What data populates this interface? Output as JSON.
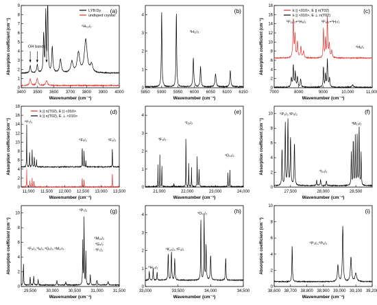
{
  "figure": {
    "alt": "Absorption spectra of LYB:Dy crystal, panels (a)–(i)"
  },
  "chart_data": [
    {
      "id": "a",
      "type": "line",
      "panel_label": "(a)",
      "xlabel": "Wavenumber (cm⁻¹)",
      "ylabel": "Absorption coefficient (cm⁻¹)",
      "xlim": [
        3400,
        4000
      ],
      "ylim": [
        0,
        9
      ],
      "xticks": [
        3400,
        3500,
        3600,
        3700,
        3800,
        3900,
        4000
      ],
      "yticks": [
        0,
        1,
        2,
        3,
        4,
        5,
        6,
        7,
        8,
        9
      ],
      "legend": {
        "position": "top-right",
        "entries": [
          "LYB:Dy",
          "undoped crystal"
        ]
      },
      "annotations": [
        {
          "text": "OH bands",
          "x": 3495,
          "y": 4.4
        },
        {
          "text": "⁶H₁₃/₂",
          "x": 3800,
          "y": 6.6
        }
      ],
      "series": [
        {
          "name": "LYB:Dy",
          "color": "#000000",
          "base": 1.6,
          "peaks": [
            [
              3455,
              0.8,
              4
            ],
            [
              3498,
              0.9,
              4
            ],
            [
              3537,
              4.2,
              3
            ],
            [
              3550,
              6.5,
              2.5
            ],
            [
              3562,
              8.7,
              2.5
            ],
            [
              3590,
              2.8,
              4
            ],
            [
              3640,
              1.5,
              6
            ],
            [
              3710,
              1.2,
              8
            ],
            [
              3750,
              2.2,
              9
            ],
            [
              3795,
              3.6,
              10
            ],
            [
              3830,
              0.9,
              8
            ]
          ]
        },
        {
          "name": "undoped crystal",
          "color": "#e0302a",
          "base": 0.25,
          "peaks": [
            [
              3455,
              0.7,
              5
            ],
            [
              3498,
              0.8,
              5
            ],
            [
              3555,
              0.5,
              6
            ]
          ]
        }
      ]
    },
    {
      "id": "b",
      "type": "line",
      "panel_label": "(b)",
      "xlabel": "Wavenumber (cm⁻¹)",
      "ylabel": "",
      "xlim": [
        5850,
        6150
      ],
      "ylim": [
        0,
        4.5
      ],
      "xticks": [
        5850,
        5900,
        5950,
        6000,
        6050,
        6100,
        6150
      ],
      "yticks": [
        0,
        1,
        2,
        3,
        4
      ],
      "annotations": [
        {
          "text": "⁶H₁₁/₂",
          "x": 6000,
          "y": 3.0
        }
      ],
      "series": [
        {
          "name": "",
          "color": "#000000",
          "base": 0.05,
          "peaks": [
            [
              5900,
              4.2,
              1.2
            ],
            [
              5945,
              4.1,
              1.2
            ],
            [
              5997,
              1.6,
              1.5
            ],
            [
              6019,
              1.1,
              1.5
            ],
            [
              6065,
              0.7,
              2
            ],
            [
              6110,
              0.9,
              1.6
            ]
          ]
        }
      ]
    },
    {
      "id": "c",
      "type": "line",
      "panel_label": "(c)",
      "xlabel": "Wavenumber (cm⁻¹)",
      "ylabel": "Absorption coefficient (cm⁻¹)",
      "xlim": [
        7000,
        11000
      ],
      "ylim": [
        0,
        18
      ],
      "xticks": [
        7000,
        8000,
        9000,
        10000,
        11000
      ],
      "yticks": [
        0,
        2,
        4,
        6,
        8,
        10,
        12,
        14,
        16,
        18
      ],
      "legend": {
        "position": "top",
        "entries": [
          "k || <010>, E || n(T02)",
          "k || <010>, E ⊥ n(T02)"
        ]
      },
      "annotations": [
        {
          "text": "⁶F₁₁/₂+⁶H₉/₂",
          "x": 7900,
          "y": 14.2
        },
        {
          "text": "⁶F₉/₂+⁶H₇/₂",
          "x": 9300,
          "y": 14.2
        },
        {
          "text": "⁶H₅/₂",
          "x": 10500,
          "y": 8.6
        }
      ],
      "series": [
        {
          "name": "k || <010>, E || n(T02)",
          "color": "#e0302a",
          "base": 6.5,
          "peaks": [
            [
              7780,
              8.5,
              20
            ],
            [
              7850,
              5.0,
              18
            ],
            [
              7950,
              3.5,
              20
            ],
            [
              8090,
              2.5,
              20
            ],
            [
              8200,
              1.5,
              25
            ],
            [
              9010,
              6.5,
              15
            ],
            [
              9090,
              4.0,
              15
            ],
            [
              9170,
              8.8,
              18
            ],
            [
              9250,
              3.0,
              20
            ],
            [
              9350,
              1.5,
              25
            ]
          ]
        },
        {
          "name": "k || <010>, E ⊥ n(T02)",
          "color": "#000000",
          "base": 0.1,
          "peaks": [
            [
              7700,
              2.0,
              20
            ],
            [
              7780,
              4.8,
              18
            ],
            [
              7860,
              3.2,
              18
            ],
            [
              7950,
              2.2,
              20
            ],
            [
              8080,
              1.8,
              20
            ],
            [
              9010,
              4.5,
              15
            ],
            [
              9090,
              2.8,
              15
            ],
            [
              9170,
              6.0,
              18
            ],
            [
              9260,
              2.0,
              20
            ],
            [
              10200,
              0.5,
              40
            ]
          ]
        }
      ]
    },
    {
      "id": "d",
      "type": "line",
      "panel_label": "(d)",
      "xlabel": "Wavenumber (cm⁻¹)",
      "ylabel": "Absorption coefficient (cm⁻¹)",
      "xlim": [
        10800,
        13500
      ],
      "ylim": [
        0,
        18
      ],
      "xticks": [
        11000,
        11500,
        12000,
        12500,
        13000,
        13500
      ],
      "yticks": [
        0,
        2,
        4,
        6,
        8,
        10,
        12,
        14,
        16,
        18
      ],
      "legend": {
        "position": "top",
        "entries": [
          "k || n(T02), E || <010>",
          "k || n(T02), E ⊥ <010>"
        ]
      },
      "annotations": [
        {
          "text": "⁶F₇/₂",
          "x": 11000,
          "y": 14.3
        },
        {
          "text": "⁶F₅/₂",
          "x": 12500,
          "y": 10.2
        },
        {
          "text": "⁶F₃/₂",
          "x": 13300,
          "y": 10.2
        }
      ],
      "series": [
        {
          "name": "k || n(T02), E || <010>",
          "color": "#e0302a",
          "base": 0.05,
          "peaks": [
            [
              10950,
              4.0,
              4
            ],
            [
              11040,
              1.5,
              5
            ],
            [
              11100,
              2.0,
              5
            ],
            [
              11150,
              1.5,
              5
            ],
            [
              12480,
              2.5,
              4
            ],
            [
              12530,
              1.8,
              4
            ],
            [
              13310,
              3.8,
              4
            ]
          ]
        },
        {
          "name": "k || n(T02), E ⊥ <010>",
          "color": "#000000",
          "base": 4.5,
          "peaks": [
            [
              10950,
              9.5,
              4
            ],
            [
              11030,
              3.5,
              5
            ],
            [
              11100,
              4.0,
              5
            ],
            [
              11160,
              2.5,
              5
            ],
            [
              11220,
              1.5,
              5
            ],
            [
              12480,
              5.5,
              4
            ],
            [
              12530,
              3.8,
              4
            ],
            [
              12580,
              1.5,
              4
            ],
            [
              13310,
              5.0,
              4
            ]
          ]
        }
      ]
    },
    {
      "id": "e",
      "type": "line",
      "panel_label": "(e)",
      "xlabel": "Wavenumber (cm⁻¹)",
      "ylabel": "",
      "xlim": [
        20500,
        24000
      ],
      "ylim": [
        0,
        4.5
      ],
      "xticks": [
        21000,
        22000,
        23000,
        24000
      ],
      "yticks": [
        0,
        1,
        2,
        3,
        4
      ],
      "annotations": [
        {
          "text": "⁴F₉/₂",
          "x": 21100,
          "y": 2.6
        },
        {
          "text": "⁴I₁₅/₂",
          "x": 22050,
          "y": 3.5
        },
        {
          "text": "⁴G₁₁/₂",
          "x": 23500,
          "y": 1.7
        }
      ],
      "series": [
        {
          "name": "",
          "color": "#000000",
          "base": 0.03,
          "peaks": [
            [
              20950,
              1.3,
              4
            ],
            [
              21020,
              2.1,
              4
            ],
            [
              21090,
              1.5,
              4
            ],
            [
              21520,
              0.2,
              6
            ],
            [
              21950,
              4.0,
              4
            ],
            [
              22050,
              1.5,
              5
            ],
            [
              22150,
              1.1,
              5
            ],
            [
              22350,
              1.7,
              6
            ],
            [
              22420,
              1.0,
              8
            ],
            [
              23450,
              0.9,
              5
            ],
            [
              23520,
              1.1,
              5
            ]
          ]
        }
      ]
    },
    {
      "id": "f",
      "type": "line",
      "panel_label": "(f)",
      "xlabel": "Wavenumber (cm⁻¹)",
      "ylabel": "Absorption coefficient (cm⁻¹)",
      "xlim": [
        27250,
        28750
      ],
      "ylim": [
        0,
        11
      ],
      "xticks": [
        27500,
        28000,
        28500
      ],
      "yticks": [
        0,
        2,
        4,
        6,
        8,
        10
      ],
      "annotations": [
        {
          "text": "⁶P₃/₂,⁶P₅/₂",
          "x": 27470,
          "y": 9.8
        },
        {
          "text": "⁴I₁₃/₂",
          "x": 28000,
          "y": 2.0
        },
        {
          "text": "⁴M₁₅/₂",
          "x": 28510,
          "y": 8.5
        }
      ],
      "series": [
        {
          "name": "",
          "color": "#000000",
          "base": 0.2,
          "peaks": [
            [
              27370,
              5.0,
              5
            ],
            [
              27420,
              8.5,
              5
            ],
            [
              27460,
              9.0,
              5
            ],
            [
              27500,
              6.5,
              6
            ],
            [
              27560,
              5.8,
              6
            ],
            [
              27900,
              0.8,
              5
            ],
            [
              27960,
              0.9,
              5
            ],
            [
              28050,
              0.7,
              5
            ],
            [
              28430,
              4.5,
              4
            ],
            [
              28460,
              6.5,
              4
            ],
            [
              28490,
              6.8,
              4
            ],
            [
              28520,
              7.0,
              4
            ],
            [
              28550,
              8.2,
              4
            ],
            [
              28580,
              4.5,
              4
            ]
          ]
        }
      ]
    },
    {
      "id": "g",
      "type": "line",
      "panel_label": "(g)",
      "xlabel": "Wavenumber (cm⁻¹)",
      "ylabel": "Absorption coefficient (cm⁻¹)",
      "xlim": [
        29300,
        31500
      ],
      "ylim": [
        0,
        11
      ],
      "xticks": [
        29500,
        30000,
        30500,
        31000,
        31500
      ],
      "yticks": [
        0,
        2,
        4,
        6,
        8,
        10
      ],
      "annotations": [
        {
          "text": "⁴F₅/₂,⁶I₉/₂,⁴G₉/₂,⁴M₁₇/₂",
          "x": 29850,
          "y": 5.0
        },
        {
          "text": "⁶P₇/₂",
          "x": 30690,
          "y": 10.2
        },
        {
          "text": "⁴M₁₉/₂",
          "x": 31050,
          "y": 6.4
        },
        {
          "text": "⁴G₇/₂",
          "x": 31050,
          "y": 5.6
        },
        {
          "text": "²F₇/₂",
          "x": 31050,
          "y": 4.8
        }
      ],
      "series": [
        {
          "name": "",
          "color": "#000000",
          "base": 0.2,
          "peaks": [
            [
              29350,
              3.0,
              5
            ],
            [
              29500,
              1.2,
              6
            ],
            [
              29580,
              1.3,
              6
            ],
            [
              29680,
              0.8,
              6
            ],
            [
              30100,
              0.6,
              8
            ],
            [
              30300,
              0.4,
              8
            ],
            [
              30680,
              6.0,
              5
            ],
            [
              30710,
              9.6,
              5
            ],
            [
              30750,
              4.8,
              5
            ],
            [
              30850,
              1.5,
              6
            ],
            [
              31000,
              0.7,
              10
            ],
            [
              31250,
              0.5,
              10
            ]
          ]
        }
      ]
    },
    {
      "id": "h",
      "type": "line",
      "panel_label": "(h)",
      "xlabel": "Wavenumber (cm⁻¹)",
      "ylabel": "",
      "xlim": [
        33000,
        34500
      ],
      "ylim": [
        0,
        4.5
      ],
      "xticks": [
        33000,
        33500,
        34000,
        34500
      ],
      "yticks": [
        0,
        1,
        2,
        3,
        4
      ],
      "annotations": [
        {
          "text": "⁴H₁₃/₂",
          "x": 33120,
          "y": 1.0
        },
        {
          "text": "⁴K₁₃/₂,⁴F₃/₂",
          "x": 33450,
          "y": 2.0
        },
        {
          "text": "⁴O₁₇/₂",
          "x": 33870,
          "y": 4.0
        }
      ],
      "series": [
        {
          "name": "",
          "color": "#000000",
          "base": 0.35,
          "peaks": [
            [
              33060,
              0.5,
              4
            ],
            [
              33120,
              0.7,
              4
            ],
            [
              33180,
              0.5,
              4
            ],
            [
              33350,
              1.5,
              5
            ],
            [
              33400,
              1.6,
              5
            ],
            [
              33450,
              1.2,
              5
            ],
            [
              33850,
              3.5,
              4
            ],
            [
              33900,
              3.6,
              4
            ],
            [
              33930,
              2.0,
              5
            ],
            [
              34000,
              1.4,
              6
            ],
            [
              34230,
              1.3,
              5
            ]
          ]
        }
      ]
    },
    {
      "id": "i",
      "type": "line",
      "panel_label": "(i)",
      "xlabel": "Wavenumber (cm⁻¹)",
      "ylabel": "Absorption coefficient (cm⁻¹)",
      "xlim": [
        38600,
        39200
      ],
      "ylim": [
        0,
        10
      ],
      "xticks": [
        38600,
        38700,
        38800,
        38900,
        39000,
        39100,
        39200
      ],
      "yticks": [
        0,
        2,
        4,
        6,
        8,
        10
      ],
      "annotations": [
        {
          "text": "⁶P₃/₂,⁶P₅/₂",
          "x": 38870,
          "y": 5.2
        }
      ],
      "series": [
        {
          "name": "",
          "color": "#000000",
          "base": 0.6,
          "peaks": [
            [
              38710,
              4.5,
              2
            ],
            [
              38990,
              2.0,
              4
            ],
            [
              39020,
              6.8,
              3
            ],
            [
              39070,
              3.0,
              4
            ],
            [
              39100,
              1.0,
              6
            ]
          ]
        }
      ]
    }
  ]
}
